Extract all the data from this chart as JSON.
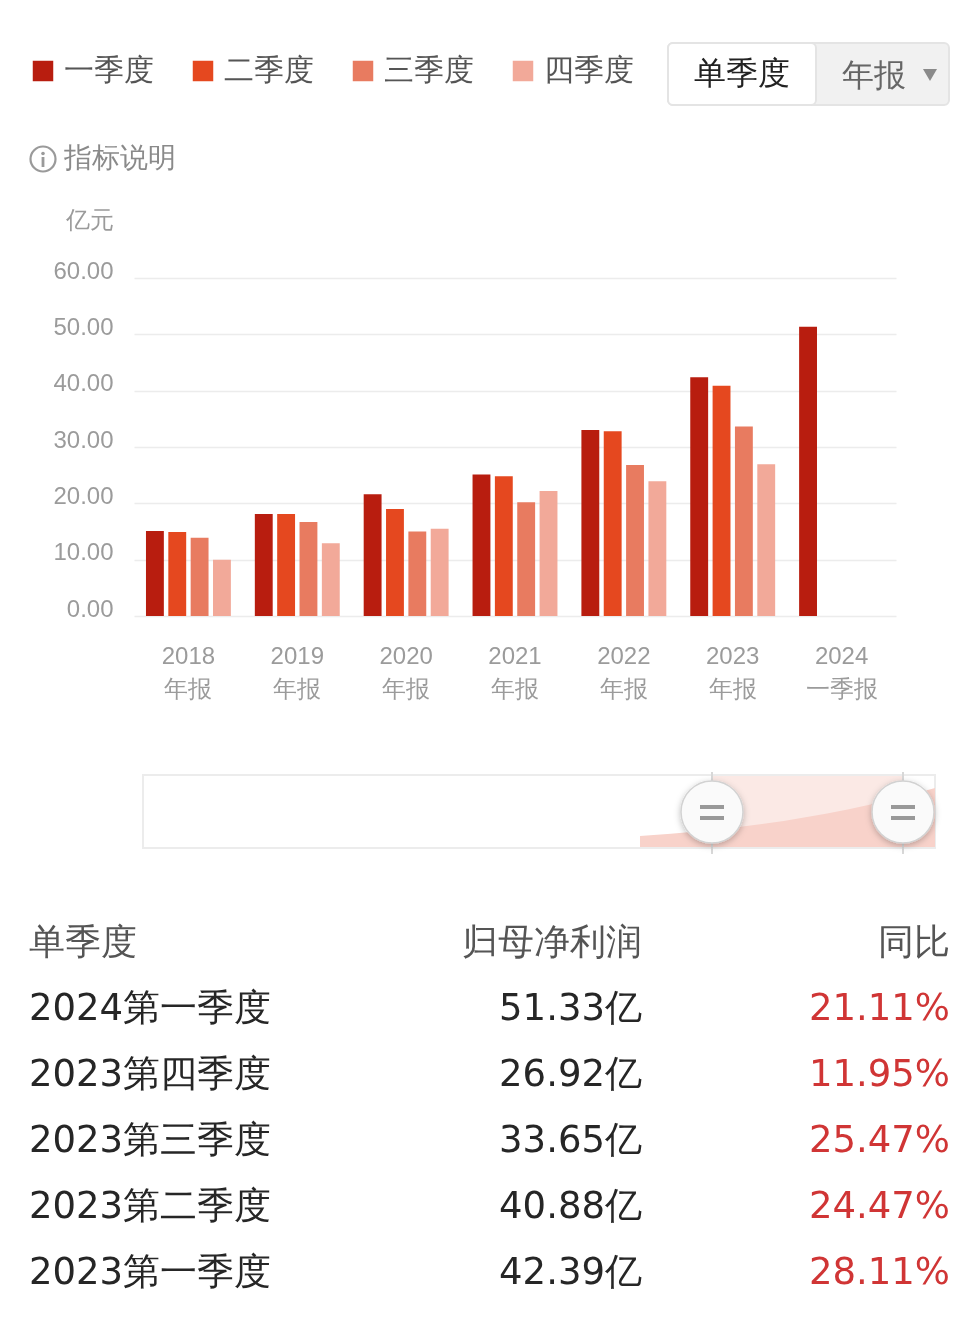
{
  "chart_data": [
    {
      "type": "bar",
      "annotations": [
        "单季度",
        "年报",
        "指标说明"
      ],
      "ylabel": "亿元",
      "categories": [
        "2018\n年报",
        "2019\n年报",
        "2020\n年报",
        "2021\n年报",
        "2022\n年报",
        "2023\n年报",
        "2024\n一季报"
      ],
      "series": [
        {
          "name": "一季度",
          "color": "#b81d0f",
          "values": [
            15.1,
            18.1,
            21.6,
            25.1,
            33.0,
            42.39,
            51.33
          ]
        },
        {
          "name": "二季度",
          "color": "#e5481f",
          "values": [
            14.9,
            18.1,
            19.0,
            24.8,
            32.8,
            40.88,
            null
          ]
        },
        {
          "name": "三季度",
          "color": "#e87b60",
          "values": [
            13.9,
            16.7,
            15.0,
            20.2,
            26.8,
            33.65,
            null
          ]
        },
        {
          "name": "四季度",
          "color": "#f2a999",
          "values": [
            10.0,
            12.9,
            15.5,
            22.2,
            23.9,
            26.92,
            null
          ]
        }
      ],
      "ylim": [
        0,
        60
      ],
      "yticks": [
        {
          "value": 0,
          "label": "0.00"
        },
        {
          "value": 10,
          "label": "10.00"
        },
        {
          "value": 20,
          "label": "20.00"
        },
        {
          "value": 30,
          "label": "30.00"
        },
        {
          "value": 40,
          "label": "40.00"
        },
        {
          "value": 50,
          "label": "50.00"
        },
        {
          "value": 60,
          "label": "60.00"
        }
      ],
      "grid": "y",
      "legend": "top left"
    },
    {
      "type": "other",
      "annotations": [
        "单季度",
        "归母净利润",
        "同比",
        "2024第一季度",
        "51.33亿",
        "21.11%",
        "2023第四季度",
        "26.92亿",
        "11.95%",
        "2023第三季度",
        "33.65亿",
        "25.47%",
        "2023第二季度",
        "40.88亿",
        "24.47%",
        "2023第一季度",
        "42.39亿",
        "28.11%"
      ]
    }
  ]
}
